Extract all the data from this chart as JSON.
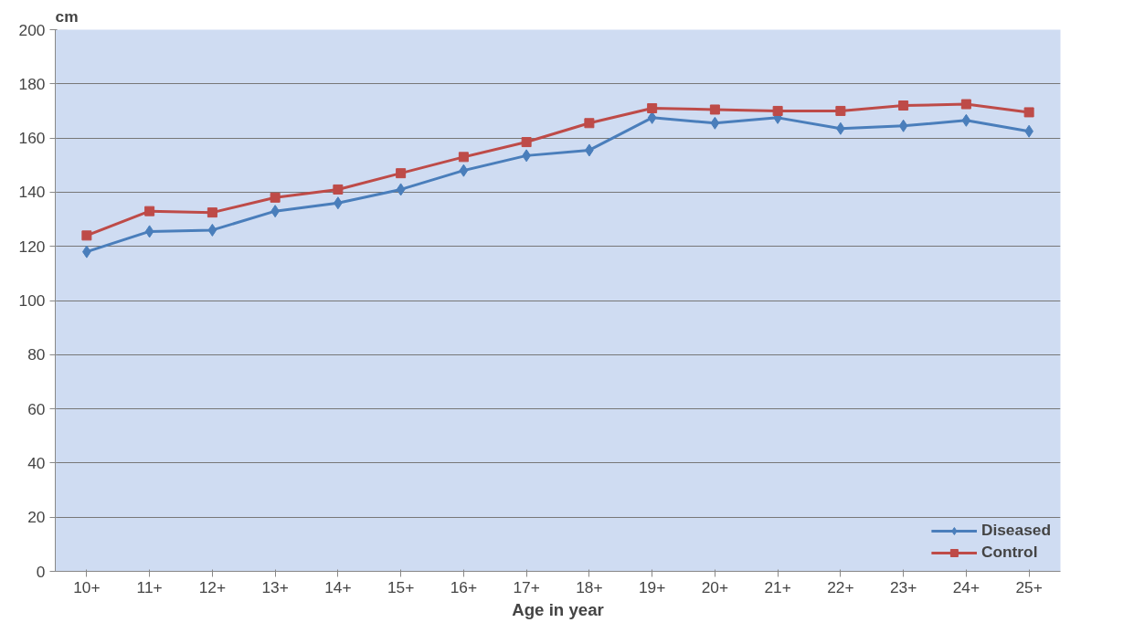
{
  "chart_data": {
    "type": "line",
    "ylabel": "cm",
    "xlabel": "Age in year",
    "categories": [
      "10+",
      "11+",
      "12+",
      "13+",
      "14+",
      "15+",
      "16+",
      "17+",
      "18+",
      "19+",
      "20+",
      "21+",
      "22+",
      "23+",
      "24+",
      "25+"
    ],
    "series": [
      {
        "name": "Diseased",
        "color": "#4a7ebb",
        "marker": "diamond",
        "values": [
          118,
          125.5,
          126,
          133,
          136,
          141,
          148,
          153.5,
          155.5,
          167.5,
          165.5,
          167.5,
          163.5,
          164.5,
          166.5,
          162.5
        ]
      },
      {
        "name": "Control",
        "color": "#be4b48",
        "marker": "square",
        "values": [
          124,
          133,
          132.5,
          138,
          141,
          147,
          153,
          158.5,
          165.5,
          171,
          170.5,
          170,
          170,
          172,
          172.5,
          169.5
        ]
      }
    ],
    "ylim": [
      0,
      200
    ],
    "yticks": [
      0,
      20,
      40,
      60,
      80,
      100,
      120,
      140,
      160,
      180,
      200
    ],
    "grid": "y",
    "legend": "bottom right"
  }
}
